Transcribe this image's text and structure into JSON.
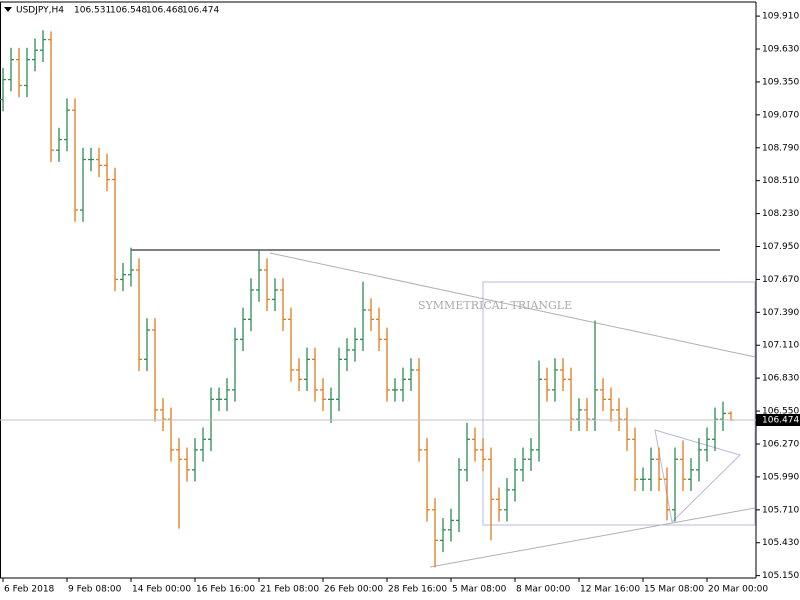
{
  "chart_data": {
    "type": "ohlc",
    "symbol": "USDJPY,H4",
    "annotation": "SYMMETRICAL TRIANGLE",
    "bull_color": "#2e8b57",
    "bear_color": "#e07b1f",
    "ylim": [
      105.13,
      110.03
    ],
    "yticks": [
      {
        "value": 109.91,
        "label": "109.910"
      },
      {
        "value": 109.63,
        "label": "109.630"
      },
      {
        "value": 109.35,
        "label": "109.350"
      },
      {
        "value": 109.07,
        "label": "109.070"
      },
      {
        "value": 108.79,
        "label": "108.790"
      },
      {
        "value": 108.51,
        "label": "108.510"
      },
      {
        "value": 108.23,
        "label": "108.230"
      },
      {
        "value": 107.95,
        "label": "107.950"
      },
      {
        "value": 107.67,
        "label": "107.670"
      },
      {
        "value": 107.39,
        "label": "107.390"
      },
      {
        "value": 107.11,
        "label": "107.110"
      },
      {
        "value": 106.83,
        "label": "106.830"
      },
      {
        "value": 106.55,
        "label": "106.550"
      },
      {
        "value": 106.27,
        "label": "106.270"
      },
      {
        "value": 105.99,
        "label": "105.990"
      },
      {
        "value": 105.71,
        "label": "105.710"
      },
      {
        "value": 105.43,
        "label": "105.430"
      },
      {
        "value": 105.15,
        "label": "105.150"
      }
    ],
    "categories": [
      "6 Feb 2018",
      null,
      null,
      null,
      null,
      null,
      null,
      null,
      "9 Feb 08:00",
      null,
      null,
      null,
      null,
      null,
      null,
      null,
      "14 Feb 00:00",
      null,
      null,
      null,
      null,
      null,
      null,
      null,
      "16 Feb 16:00",
      null,
      null,
      null,
      null,
      null,
      null,
      null,
      "21 Feb 08:00",
      null,
      null,
      null,
      null,
      null,
      null,
      null,
      "26 Feb 00:00",
      null,
      null,
      null,
      null,
      null,
      null,
      null,
      "28 Feb 16:00",
      null,
      null,
      null,
      null,
      null,
      null,
      null,
      "5 Mar 08:00",
      null,
      null,
      null,
      null,
      null,
      null,
      null,
      "8 Mar 00:00",
      null,
      null,
      null,
      null,
      null,
      null,
      null,
      "12 Mar 16:00",
      null,
      null,
      null,
      null,
      null,
      null,
      null,
      "15 Mar 08:00",
      null,
      null,
      null,
      null,
      null,
      null,
      null,
      "20 Mar 00:00",
      null,
      null,
      null
    ],
    "open": [
      109.2,
      109.37,
      109.54,
      109.32,
      109.54,
      109.62,
      109.71,
      108.77,
      108.86,
      109.11,
      108.26,
      108.69,
      108.69,
      108.64,
      108.52,
      107.67,
      107.71,
      107.75,
      106.99,
      107.24,
      106.56,
      106.48,
      106.22,
      106.14,
      106.05,
      106.22,
      106.31,
      106.65,
      106.65,
      106.73,
      107.16,
      107.33,
      107.58,
      107.75,
      107.5,
      107.58,
      107.33,
      106.9,
      106.82,
      106.99,
      106.73,
      106.65,
      106.65,
      106.99,
      107.07,
      107.16,
      107.41,
      107.33,
      107.16,
      106.73,
      106.73,
      106.82,
      106.9,
      106.22,
      105.71,
      105.45,
      105.54,
      105.62,
      106.05,
      106.31,
      106.22,
      106.14,
      105.8,
      105.71,
      105.88,
      106.05,
      106.14,
      106.22,
      106.82,
      106.73,
      106.9,
      106.82,
      106.48,
      106.56,
      106.48,
      106.73,
      106.65,
      106.56,
      106.48,
      106.31,
      105.97,
      105.97,
      106.14,
      105.97,
      105.71,
      106.14,
      105.97,
      106.05,
      106.22,
      106.31,
      106.48,
      106.531
    ],
    "high": [
      109.47,
      109.64,
      109.64,
      109.64,
      109.72,
      109.79,
      109.78,
      108.96,
      109.21,
      109.21,
      108.79,
      108.79,
      108.79,
      108.74,
      108.62,
      107.81,
      107.94,
      107.85,
      107.34,
      107.34,
      106.66,
      106.58,
      106.32,
      106.24,
      106.32,
      106.41,
      106.75,
      106.75,
      106.83,
      107.26,
      107.43,
      107.68,
      107.92,
      107.85,
      107.68,
      107.68,
      107.43,
      107.0,
      107.09,
      107.09,
      106.83,
      106.75,
      107.09,
      107.17,
      107.26,
      107.65,
      107.51,
      107.43,
      107.26,
      106.83,
      106.92,
      107.0,
      107.0,
      106.32,
      105.81,
      105.64,
      105.72,
      106.15,
      106.45,
      106.41,
      106.32,
      106.24,
      105.9,
      105.98,
      106.15,
      106.24,
      106.32,
      106.98,
      106.92,
      107.0,
      107.0,
      106.92,
      106.66,
      106.66,
      107.32,
      106.83,
      106.75,
      106.66,
      106.58,
      106.41,
      106.07,
      106.24,
      106.24,
      106.07,
      106.24,
      106.3,
      106.15,
      106.32,
      106.41,
      106.58,
      106.63,
      106.548
    ],
    "low": [
      109.1,
      109.27,
      109.22,
      109.22,
      109.44,
      109.52,
      108.67,
      108.67,
      108.76,
      108.16,
      108.16,
      108.59,
      108.54,
      108.42,
      107.57,
      107.57,
      107.61,
      106.89,
      106.89,
      106.46,
      106.38,
      106.12,
      105.55,
      105.95,
      105.95,
      106.12,
      106.21,
      106.55,
      106.55,
      106.63,
      107.06,
      107.23,
      107.48,
      107.4,
      107.4,
      107.23,
      106.8,
      106.72,
      106.72,
      106.63,
      106.55,
      106.45,
      106.55,
      106.89,
      106.97,
      107.06,
      107.23,
      107.06,
      106.63,
      106.63,
      106.63,
      106.72,
      106.12,
      105.61,
      105.22,
      105.35,
      105.44,
      105.52,
      105.95,
      106.12,
      106.04,
      105.45,
      105.61,
      105.61,
      105.78,
      105.95,
      106.04,
      106.12,
      106.63,
      106.63,
      106.72,
      106.38,
      106.38,
      106.38,
      106.38,
      106.55,
      106.46,
      106.38,
      106.21,
      105.87,
      105.87,
      105.87,
      105.87,
      105.62,
      105.61,
      105.87,
      105.87,
      105.95,
      106.12,
      106.21,
      106.38,
      106.468
    ],
    "close": [
      109.37,
      109.54,
      109.32,
      109.54,
      109.62,
      109.71,
      108.77,
      108.86,
      109.11,
      108.26,
      108.69,
      108.69,
      108.64,
      108.52,
      107.67,
      107.71,
      107.75,
      106.99,
      107.24,
      106.56,
      106.48,
      106.22,
      106.14,
      106.05,
      106.22,
      106.31,
      106.65,
      106.65,
      106.73,
      107.16,
      107.33,
      107.58,
      107.75,
      107.5,
      107.58,
      107.33,
      106.9,
      106.82,
      106.99,
      106.73,
      106.65,
      106.65,
      106.99,
      107.07,
      107.16,
      107.41,
      107.33,
      107.16,
      106.73,
      106.73,
      106.82,
      106.9,
      106.22,
      105.71,
      105.45,
      105.54,
      105.62,
      106.05,
      106.31,
      106.22,
      106.14,
      105.8,
      105.71,
      105.88,
      106.05,
      106.14,
      106.22,
      106.82,
      106.73,
      106.9,
      106.82,
      106.48,
      106.56,
      106.48,
      106.73,
      106.65,
      106.56,
      106.48,
      106.31,
      105.97,
      105.97,
      106.14,
      105.97,
      105.71,
      106.14,
      105.97,
      106.05,
      106.22,
      106.31,
      106.48,
      106.53,
      106.474
    ]
  }
}
